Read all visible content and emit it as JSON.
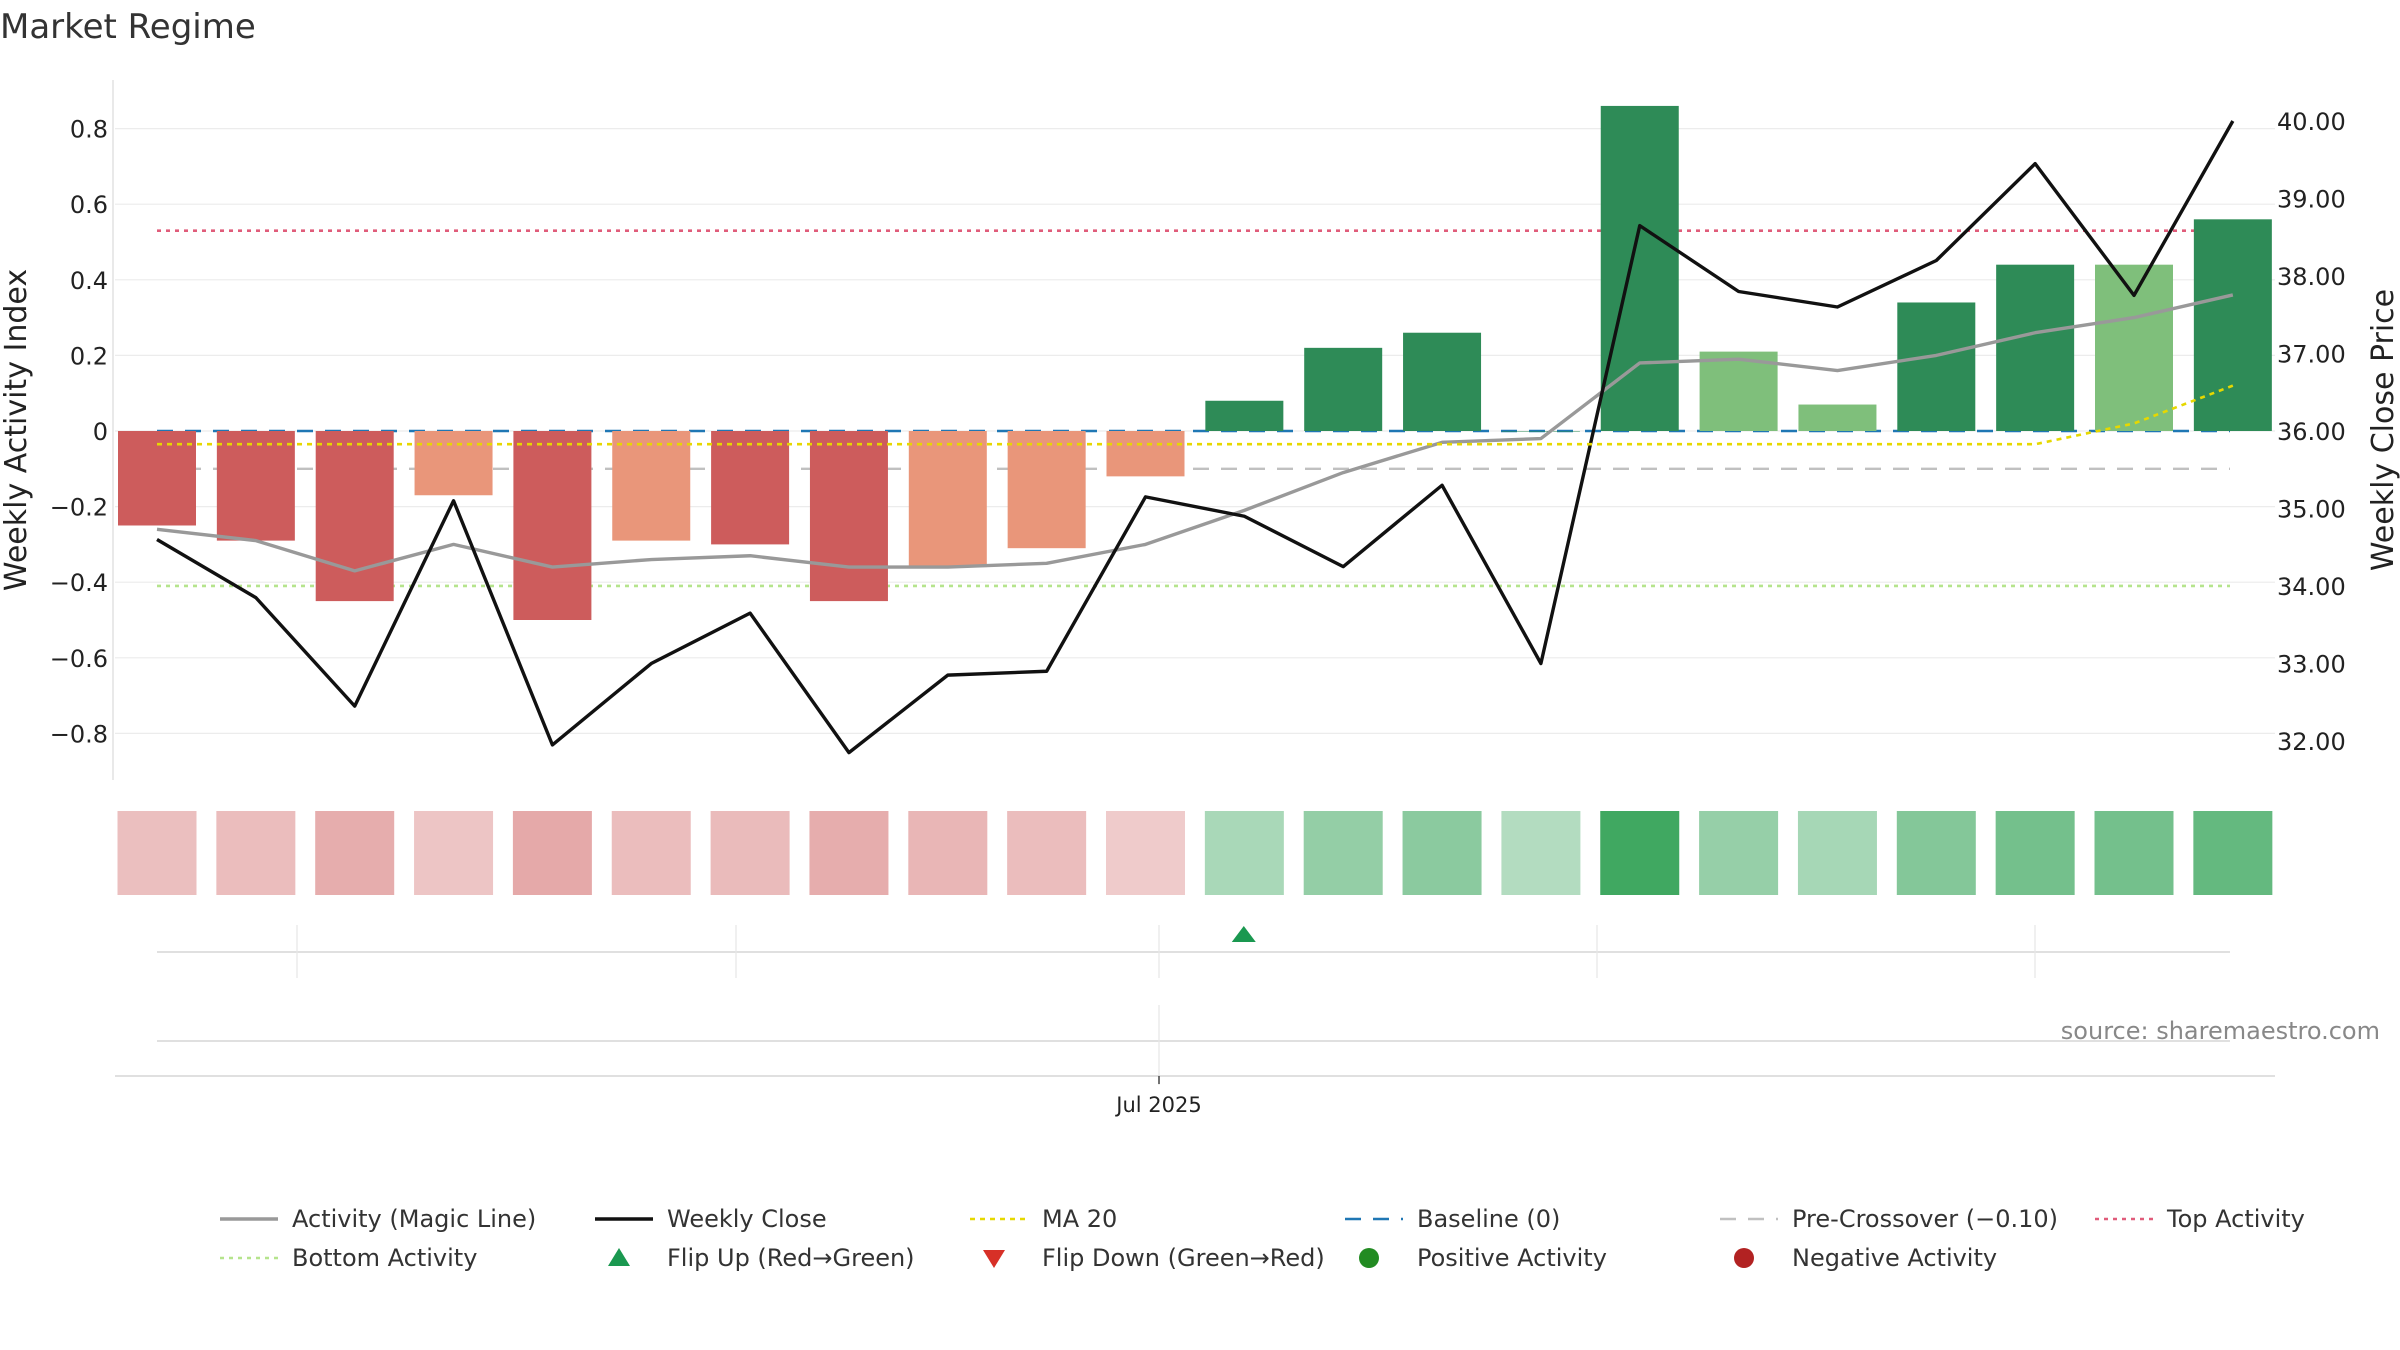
{
  "title": "Market Regime",
  "source": "source: sharemaestro.com",
  "date_label": "Jul 2025",
  "colors": {
    "neg_strong": "#cd5c5c",
    "neg_light": "#e9967a",
    "pos_strong": "#2e8b57",
    "pos_light": "#7fbf7b",
    "magic_line": "#999999",
    "weekly_close": "#111111",
    "ma20": "#e6d800",
    "baseline": "#1f77b4",
    "precross": "#c0c0c0",
    "top": "#e05c7a",
    "bottom": "#b5e48c",
    "flip_up": "#1a9850",
    "flip_down": "#d73027",
    "pos_marker": "#228b22",
    "neg_marker": "#b22222"
  },
  "chart_data": {
    "type": "bar",
    "title": "Market Regime",
    "ylabel": "Weekly Activity Index",
    "y2label": "Weekly Close Price",
    "ylim": [
      -0.92,
      0.92
    ],
    "y2lim": [
      31.4,
      40.6
    ],
    "yticks": [
      "0.8",
      "0.6",
      "0.4",
      "0.2",
      "0",
      "−0.2",
      "−0.4",
      "−0.6",
      "−0.8"
    ],
    "yticks_values": [
      0.8,
      0.6,
      0.4,
      0.2,
      0,
      -0.2,
      -0.4,
      -0.6,
      -0.8
    ],
    "y2ticks": [
      "40.00",
      "39.00",
      "38.00",
      "37.00",
      "36.00",
      "35.00",
      "34.00",
      "33.00",
      "32.00"
    ],
    "y2ticks_values": [
      40,
      39,
      38,
      37,
      36,
      35,
      34,
      33,
      32
    ],
    "grid": true,
    "legend_position": "bottom",
    "bars": {
      "values": [
        -0.25,
        -0.29,
        -0.45,
        -0.17,
        -0.5,
        -0.29,
        -0.3,
        -0.45,
        -0.36,
        -0.31,
        -0.12,
        0.08,
        0.22,
        0.26,
        0,
        0.86,
        0.21,
        0.07,
        0.34,
        0.44,
        0.44,
        0.56
      ],
      "shade": [
        "strong",
        "strong",
        "strong",
        "light",
        "strong",
        "light",
        "strong",
        "strong",
        "light",
        "light",
        "light",
        "strong",
        "strong",
        "strong",
        "strong",
        "strong",
        "light",
        "light",
        "strong",
        "strong",
        "light",
        "strong"
      ]
    },
    "series": [
      {
        "name": "Activity (Magic Line)",
        "axis": "left",
        "values": [
          -0.26,
          -0.29,
          -0.37,
          -0.3,
          -0.36,
          -0.34,
          -0.33,
          -0.36,
          -0.36,
          -0.35,
          -0.3,
          -0.21,
          -0.11,
          -0.03,
          -0.02,
          0.18,
          0.19,
          0.16,
          0.2,
          0.26,
          0.3,
          0.36
        ]
      },
      {
        "name": "Weekly Close",
        "axis": "right",
        "values": [
          34.6,
          33.85,
          32.45,
          35.1,
          31.95,
          33.0,
          33.65,
          31.85,
          32.85,
          32.9,
          35.15,
          34.9,
          34.25,
          35.3,
          33.0,
          38.65,
          37.8,
          37.6,
          38.2,
          39.45,
          37.75,
          40.0
        ]
      },
      {
        "name": "MA 20",
        "axis": "left",
        "values": [
          -0.035,
          -0.035,
          -0.035,
          -0.035,
          -0.035,
          -0.035,
          -0.035,
          -0.035,
          -0.035,
          -0.035,
          -0.035,
          -0.035,
          -0.035,
          -0.035,
          -0.035,
          -0.035,
          -0.035,
          -0.035,
          -0.035,
          -0.035,
          0.02,
          0.12
        ]
      }
    ],
    "reference_lines": [
      {
        "name": "Baseline (0)",
        "y": 0
      },
      {
        "name": "Pre-Crossover (−0.10)",
        "y": -0.1
      },
      {
        "name": "Top Activity",
        "y": 0.53
      },
      {
        "name": "Bottom Activity",
        "y": -0.41
      }
    ],
    "heat_strip": [
      -0.35,
      -0.38,
      -0.55,
      -0.28,
      -0.6,
      -0.38,
      -0.4,
      -0.55,
      -0.45,
      -0.38,
      -0.22,
      0.28,
      0.42,
      0.47,
      0.22,
      0.95,
      0.4,
      0.3,
      0.52,
      0.62,
      0.62,
      0.72
    ],
    "flip_events": [
      {
        "type": "up",
        "week": 11.5
      }
    ]
  },
  "legend": [
    {
      "label": "Activity (Magic Line)",
      "kind": "line"
    },
    {
      "label": "Weekly Close",
      "kind": "line"
    },
    {
      "label": "MA 20",
      "kind": "dotted"
    },
    {
      "label": "Baseline (0)",
      "kind": "dashed"
    },
    {
      "label": "Pre-Crossover (−0.10)",
      "kind": "dashed-light"
    },
    {
      "label": "Top Activity",
      "kind": "dotted"
    },
    {
      "label": "Bottom Activity",
      "kind": "dotted"
    },
    {
      "label": "Flip Up (Red→Green)",
      "kind": "triangle-up"
    },
    {
      "label": "Flip Down (Green→Red)",
      "kind": "triangle-down"
    },
    {
      "label": "Positive Activity",
      "kind": "circle"
    },
    {
      "label": "Negative Activity",
      "kind": "circle"
    }
  ]
}
